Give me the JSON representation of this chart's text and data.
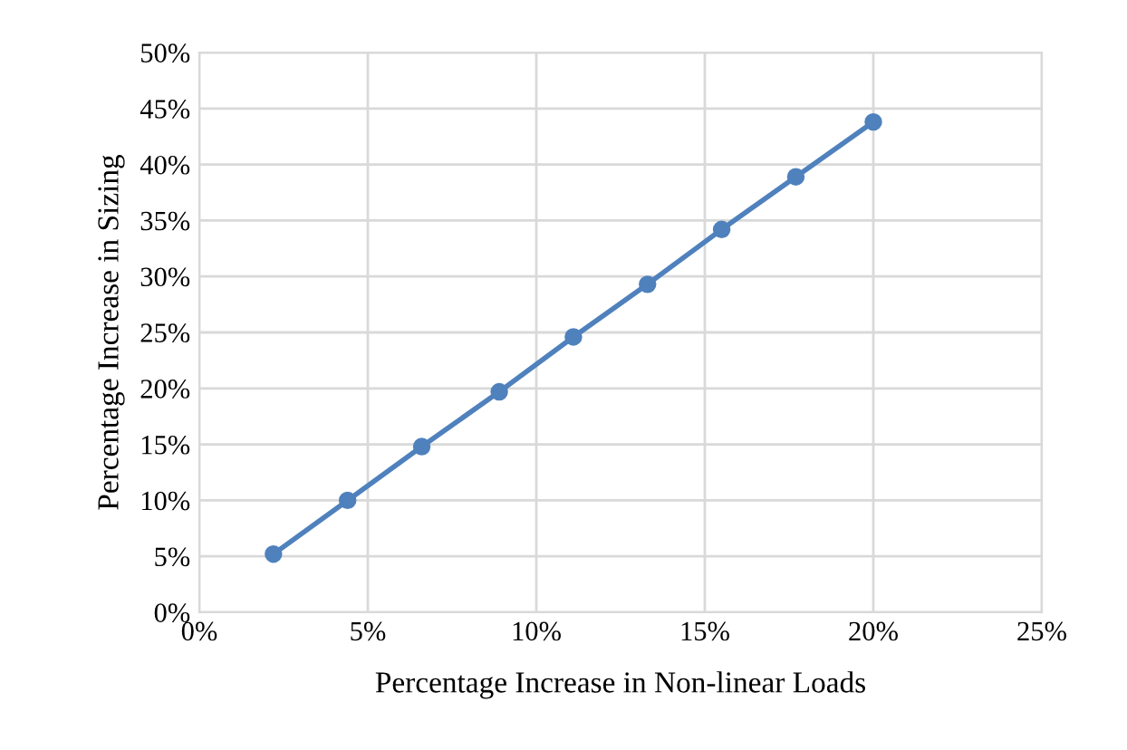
{
  "chart_data": {
    "type": "line",
    "xlabel": "Percentage Increase in Non-linear Loads",
    "ylabel": "Percentage Increase in Sizing",
    "series": [
      {
        "color": "#4f81bd",
        "x": [
          2.2,
          4.4,
          6.6,
          8.9,
          11.1,
          13.3,
          15.5,
          17.7,
          20.0
        ],
        "values": [
          5.2,
          10.0,
          14.8,
          19.7,
          24.6,
          29.3,
          34.2,
          38.9,
          43.8
        ]
      }
    ],
    "xlim": [
      0,
      25
    ],
    "ylim": [
      0,
      50
    ],
    "xticks": [
      {
        "value": 0,
        "label": "0%"
      },
      {
        "value": 5,
        "label": "5%"
      },
      {
        "value": 10,
        "label": "10%"
      },
      {
        "value": 15,
        "label": "15%"
      },
      {
        "value": 20,
        "label": "20%"
      },
      {
        "value": 25,
        "label": "25%"
      }
    ],
    "yticks": [
      {
        "value": 0,
        "label": "0%"
      },
      {
        "value": 5,
        "label": "5%"
      },
      {
        "value": 10,
        "label": "10%"
      },
      {
        "value": 15,
        "label": "15%"
      },
      {
        "value": 20,
        "label": "20%"
      },
      {
        "value": 25,
        "label": "25%"
      },
      {
        "value": 30,
        "label": "30%"
      },
      {
        "value": 35,
        "label": "35%"
      },
      {
        "value": 40,
        "label": "40%"
      },
      {
        "value": 45,
        "label": "45%"
      },
      {
        "value": 50,
        "label": "50%"
      }
    ],
    "grid": true,
    "marker": "circle",
    "line_style": "solid"
  }
}
